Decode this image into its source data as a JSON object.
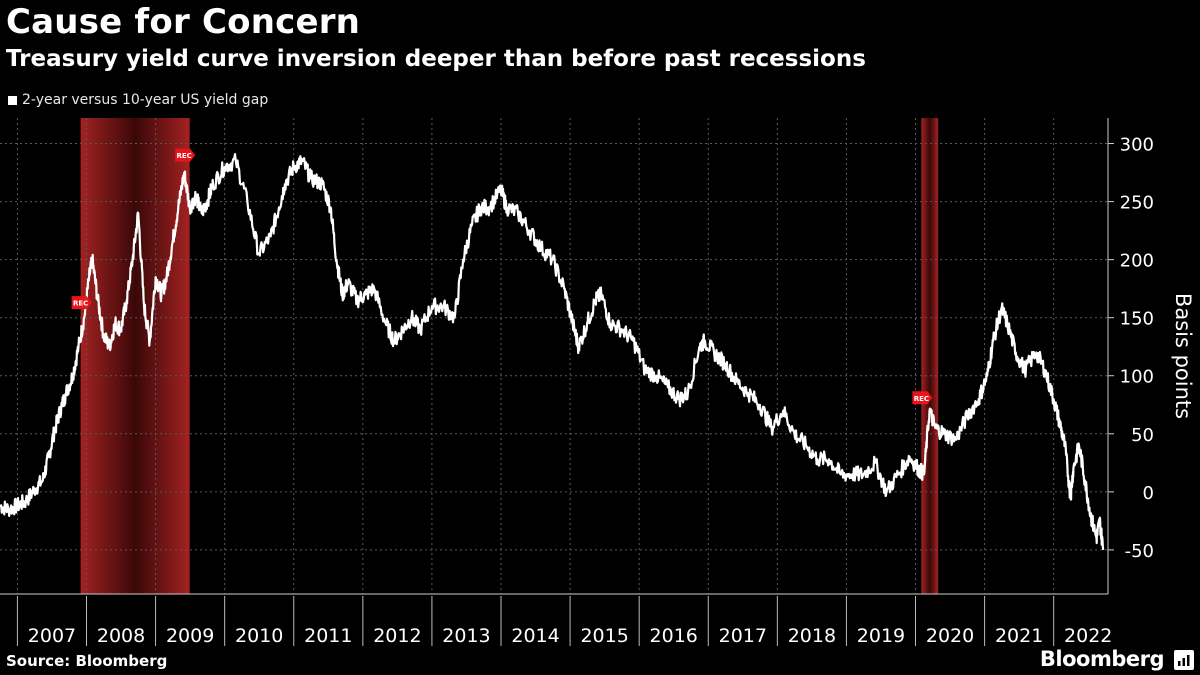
{
  "header": {
    "title": "Cause for Concern",
    "subtitle": "Treasury yield curve inversion deeper than before past recessions"
  },
  "footer": {
    "source": "Source: Bloomberg",
    "brand": "Bloomberg"
  },
  "colors": {
    "background": "#000000",
    "line": "#ffffff",
    "recession_band": "#8b1a1a",
    "rec_marker": "#e8141c",
    "grid": "#5a5a5a"
  },
  "chart_data": {
    "type": "line",
    "title": "Cause for Concern",
    "subtitle": "Treasury yield curve inversion deeper than before past recessions",
    "ylabel": "Basis points",
    "xlabel": "",
    "ylim": [
      -88,
      322
    ],
    "xlim": [
      "2006-10-01",
      "2022-10-15"
    ],
    "yticks": [
      -50,
      0,
      50,
      100,
      150,
      200,
      250,
      300
    ],
    "xtick_labels": [
      "2007",
      "2008",
      "2009",
      "2010",
      "2011",
      "2012",
      "2013",
      "2014",
      "2015",
      "2016",
      "2017",
      "2018",
      "2019",
      "2020",
      "2021",
      "2022"
    ],
    "grid": true,
    "legend_position": "top-left",
    "series": [
      {
        "name": "2-year versus 10-year US yield gap",
        "points": [
          [
            "2006-10-01",
            -12
          ],
          [
            "2006-11-15",
            -15
          ],
          [
            "2007-01-01",
            -12
          ],
          [
            "2007-02-15",
            -8
          ],
          [
            "2007-04-01",
            2
          ],
          [
            "2007-05-15",
            10
          ],
          [
            "2007-06-15",
            30
          ],
          [
            "2007-07-15",
            52
          ],
          [
            "2007-08-15",
            70
          ],
          [
            "2007-09-15",
            85
          ],
          [
            "2007-10-20",
            100
          ],
          [
            "2007-11-20",
            125
          ],
          [
            "2007-12-20",
            150
          ],
          [
            "2008-01-15",
            185
          ],
          [
            "2008-02-01",
            200
          ],
          [
            "2008-03-01",
            165
          ],
          [
            "2008-04-01",
            135
          ],
          [
            "2008-05-01",
            125
          ],
          [
            "2008-06-01",
            145
          ],
          [
            "2008-07-01",
            140
          ],
          [
            "2008-08-01",
            165
          ],
          [
            "2008-09-01",
            200
          ],
          [
            "2008-10-01",
            240
          ],
          [
            "2008-11-01",
            160
          ],
          [
            "2008-12-01",
            130
          ],
          [
            "2009-01-01",
            185
          ],
          [
            "2009-02-01",
            170
          ],
          [
            "2009-03-01",
            185
          ],
          [
            "2009-04-01",
            215
          ],
          [
            "2009-05-01",
            245
          ],
          [
            "2009-06-01",
            275
          ],
          [
            "2009-07-01",
            245
          ],
          [
            "2009-08-01",
            255
          ],
          [
            "2009-09-01",
            240
          ],
          [
            "2009-10-01",
            250
          ],
          [
            "2009-11-01",
            265
          ],
          [
            "2010-01-01",
            280
          ],
          [
            "2010-03-01",
            285
          ],
          [
            "2010-05-01",
            250
          ],
          [
            "2010-07-01",
            205
          ],
          [
            "2010-09-01",
            220
          ],
          [
            "2010-10-15",
            245
          ],
          [
            "2010-11-15",
            265
          ],
          [
            "2011-01-01",
            280
          ],
          [
            "2011-02-15",
            285
          ],
          [
            "2011-04-01",
            270
          ],
          [
            "2011-06-01",
            265
          ],
          [
            "2011-07-15",
            245
          ],
          [
            "2011-08-15",
            200
          ],
          [
            "2011-09-15",
            170
          ],
          [
            "2011-10-15",
            180
          ],
          [
            "2011-12-01",
            165
          ],
          [
            "2012-01-15",
            170
          ],
          [
            "2012-03-01",
            175
          ],
          [
            "2012-05-01",
            145
          ],
          [
            "2012-06-15",
            130
          ],
          [
            "2012-08-01",
            140
          ],
          [
            "2012-09-15",
            150
          ],
          [
            "2012-11-01",
            140
          ],
          [
            "2013-01-01",
            160
          ],
          [
            "2013-03-01",
            160
          ],
          [
            "2013-05-01",
            150
          ],
          [
            "2013-06-15",
            200
          ],
          [
            "2013-08-01",
            230
          ],
          [
            "2013-09-15",
            245
          ],
          [
            "2013-11-01",
            245
          ],
          [
            "2013-12-31",
            260
          ],
          [
            "2014-02-01",
            245
          ],
          [
            "2014-04-01",
            240
          ],
          [
            "2014-06-01",
            225
          ],
          [
            "2014-08-01",
            210
          ],
          [
            "2014-10-01",
            200
          ],
          [
            "2014-12-01",
            175
          ],
          [
            "2015-01-15",
            145
          ],
          [
            "2015-02-15",
            125
          ],
          [
            "2015-04-01",
            145
          ],
          [
            "2015-05-15",
            165
          ],
          [
            "2015-06-15",
            170
          ],
          [
            "2015-08-01",
            145
          ],
          [
            "2015-10-01",
            140
          ],
          [
            "2015-12-01",
            130
          ],
          [
            "2016-02-01",
            105
          ],
          [
            "2016-04-01",
            100
          ],
          [
            "2016-06-01",
            90
          ],
          [
            "2016-08-01",
            80
          ],
          [
            "2016-09-15",
            85
          ],
          [
            "2016-11-15",
            125
          ],
          [
            "2016-12-15",
            130
          ],
          [
            "2017-02-01",
            120
          ],
          [
            "2017-04-01",
            110
          ],
          [
            "2017-06-01",
            95
          ],
          [
            "2017-08-01",
            85
          ],
          [
            "2017-10-01",
            75
          ],
          [
            "2017-12-01",
            55
          ],
          [
            "2018-02-01",
            70
          ],
          [
            "2018-04-01",
            50
          ],
          [
            "2018-06-01",
            40
          ],
          [
            "2018-08-01",
            28
          ],
          [
            "2018-10-01",
            28
          ],
          [
            "2018-12-01",
            15
          ],
          [
            "2019-02-01",
            15
          ],
          [
            "2019-04-01",
            15
          ],
          [
            "2019-06-01",
            25
          ],
          [
            "2019-08-01",
            0
          ],
          [
            "2019-10-01",
            15
          ],
          [
            "2019-12-01",
            30
          ],
          [
            "2020-01-15",
            20
          ],
          [
            "2020-02-15",
            15
          ],
          [
            "2020-03-15",
            70
          ],
          [
            "2020-04-15",
            55
          ],
          [
            "2020-06-01",
            50
          ],
          [
            "2020-08-01",
            45
          ],
          [
            "2020-10-01",
            65
          ],
          [
            "2020-12-01",
            80
          ],
          [
            "2021-01-15",
            100
          ],
          [
            "2021-02-15",
            130
          ],
          [
            "2021-03-31",
            158
          ],
          [
            "2021-05-01",
            145
          ],
          [
            "2021-06-15",
            120
          ],
          [
            "2021-08-01",
            105
          ],
          [
            "2021-10-01",
            120
          ],
          [
            "2021-11-15",
            105
          ],
          [
            "2021-12-31",
            80
          ],
          [
            "2022-02-01",
            60
          ],
          [
            "2022-03-01",
            40
          ],
          [
            "2022-03-31",
            -5
          ],
          [
            "2022-04-15",
            20
          ],
          [
            "2022-05-15",
            40
          ],
          [
            "2022-06-15",
            10
          ],
          [
            "2022-07-15",
            -20
          ],
          [
            "2022-08-15",
            -40
          ],
          [
            "2022-09-01",
            -25
          ],
          [
            "2022-09-20",
            -50
          ]
        ]
      }
    ],
    "recessions": [
      {
        "start": "2007-12-01",
        "end": "2009-06-30",
        "marker_label": "REC"
      },
      {
        "start": "2020-02-01",
        "end": "2020-04-30",
        "marker_label": "REC"
      }
    ],
    "rec_markers": [
      {
        "date": "2007-12-01",
        "y": 163,
        "label": "REC"
      },
      {
        "date": "2009-06-01",
        "y": 290,
        "label": "REC"
      },
      {
        "date": "2020-02-01",
        "y": 81,
        "label": "REC"
      }
    ]
  }
}
